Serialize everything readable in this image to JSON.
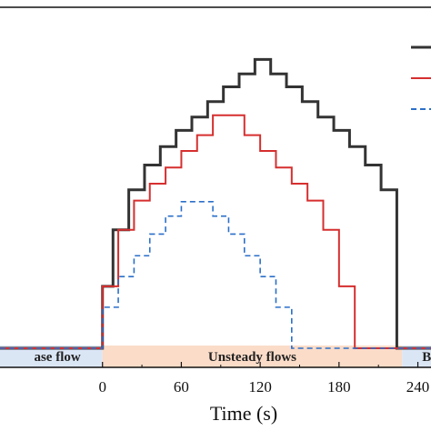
{
  "chart_data": {
    "type": "line",
    "step": true,
    "xlabel": "Time (s)",
    "xlim": [
      -78,
      250
    ],
    "ylim": [
      0,
      1
    ],
    "x_ticks": [
      0,
      60,
      120,
      180,
      240
    ],
    "x_tick_labels": [
      "0",
      "60",
      "120",
      "180",
      "240"
    ],
    "bands": [
      {
        "label": "ase flow",
        "from": -78,
        "to": 0,
        "color": "#dbe6f5"
      },
      {
        "label": "Unsteady flows",
        "from": 0,
        "to": 228,
        "color": "#fbdcc8"
      },
      {
        "label": "Ba",
        "from": 228,
        "to": 250,
        "color": "#dbe6f5"
      }
    ],
    "grid": false,
    "legend": {
      "position": "top-right",
      "clipped": true
    },
    "series": [
      {
        "color": "#333333",
        "style": "solid",
        "x": [
          -78,
          0,
          8,
          20,
          32,
          44,
          56,
          68,
          80,
          92,
          104,
          116,
          128,
          140,
          152,
          164,
          176,
          188,
          200,
          212,
          224,
          250
        ],
        "y": [
          0.053,
          0.225,
          0.382,
          0.493,
          0.562,
          0.613,
          0.658,
          0.695,
          0.738,
          0.779,
          0.815,
          0.855,
          0.815,
          0.779,
          0.738,
          0.695,
          0.658,
          0.613,
          0.562,
          0.493,
          0.053,
          0.053
        ]
      },
      {
        "color": "#d62f2f",
        "style": "solid",
        "x": [
          -78,
          0,
          12,
          24,
          36,
          48,
          60,
          72,
          84,
          96,
          108,
          120,
          132,
          144,
          156,
          168,
          180,
          192,
          204,
          216,
          250
        ],
        "y": [
          0.053,
          0.225,
          0.382,
          0.463,
          0.51,
          0.555,
          0.601,
          0.645,
          0.7,
          0.7,
          0.645,
          0.601,
          0.555,
          0.51,
          0.463,
          0.382,
          0.225,
          0.053,
          0.053,
          0.053,
          0.053
        ]
      },
      {
        "color": "#2a6fc9",
        "style": "dashed",
        "x": [
          -78,
          0,
          12,
          24,
          36,
          48,
          60,
          72,
          84,
          96,
          108,
          120,
          132,
          144,
          156,
          168,
          180,
          192,
          204,
          216,
          250
        ],
        "y": [
          0.053,
          0.167,
          0.252,
          0.31,
          0.37,
          0.42,
          0.46,
          0.46,
          0.42,
          0.37,
          0.31,
          0.252,
          0.167,
          0.053,
          0.053,
          0.053,
          0.053,
          0.053,
          0.053,
          0.053,
          0.053
        ]
      }
    ]
  }
}
